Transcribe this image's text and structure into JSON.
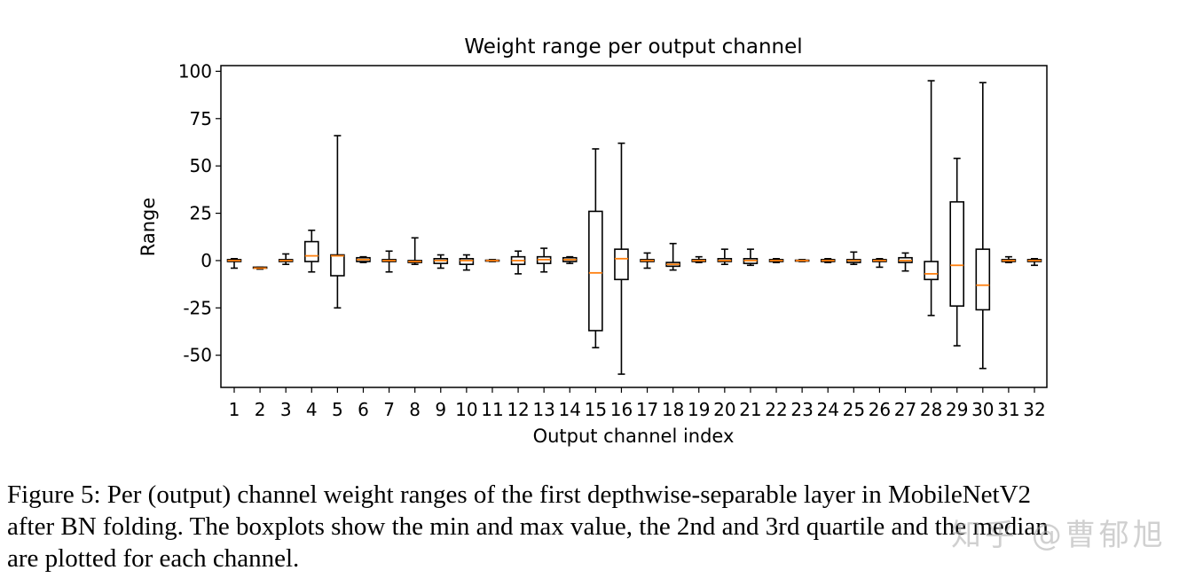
{
  "chart_data": {
    "type": "boxplot",
    "title": "Weight range per output channel",
    "xlabel": "Output channel index",
    "ylabel": "Range",
    "ylim": [
      -67,
      103
    ],
    "yticks": [
      100,
      75,
      50,
      25,
      0,
      -25,
      -50
    ],
    "categories": [
      "1",
      "2",
      "3",
      "4",
      "5",
      "6",
      "7",
      "8",
      "9",
      "10",
      "11",
      "12",
      "13",
      "14",
      "15",
      "16",
      "17",
      "18",
      "19",
      "20",
      "21",
      "22",
      "23",
      "24",
      "25",
      "26",
      "27",
      "28",
      "29",
      "30",
      "31",
      "32"
    ],
    "boxes": [
      {
        "min": -4,
        "q1": -0.5,
        "median": 0,
        "q3": 0.5,
        "max": 1
      },
      {
        "min": -4.5,
        "q1": -4,
        "median": -4,
        "q3": -3.5,
        "max": -3.5
      },
      {
        "min": -2,
        "q1": -0.5,
        "median": 0,
        "q3": 0.5,
        "max": 3.5
      },
      {
        "min": -6,
        "q1": -0.5,
        "median": 2.5,
        "q3": 10,
        "max": 16
      },
      {
        "min": -25,
        "q1": -8,
        "median": 2.5,
        "q3": 3,
        "max": 66
      },
      {
        "min": -1,
        "q1": -0.5,
        "median": 0.5,
        "q3": 1.5,
        "max": 2
      },
      {
        "min": -6,
        "q1": -0.5,
        "median": 0,
        "q3": 0.5,
        "max": 5
      },
      {
        "min": -2,
        "q1": -1,
        "median": -0.5,
        "q3": 0,
        "max": 12
      },
      {
        "min": -4,
        "q1": -1.5,
        "median": 0,
        "q3": 1,
        "max": 3
      },
      {
        "min": -5,
        "q1": -2,
        "median": 0,
        "q3": 1,
        "max": 3
      },
      {
        "min": -0.5,
        "q1": -0.2,
        "median": 0,
        "q3": 0.2,
        "max": 0.5
      },
      {
        "min": -7,
        "q1": -2,
        "median": 0,
        "q3": 2,
        "max": 5
      },
      {
        "min": -6,
        "q1": -1.5,
        "median": 0.5,
        "q3": 2,
        "max": 6.5
      },
      {
        "min": -1.5,
        "q1": -0.5,
        "median": 0.5,
        "q3": 1.5,
        "max": 2
      },
      {
        "min": -46,
        "q1": -37,
        "median": -6.5,
        "q3": 26,
        "max": 59
      },
      {
        "min": -60,
        "q1": -10,
        "median": 1,
        "q3": 6,
        "max": 62
      },
      {
        "min": -4,
        "q1": -0.5,
        "median": 0,
        "q3": 0.5,
        "max": 4
      },
      {
        "min": -5,
        "q1": -3,
        "median": -2,
        "q3": -1,
        "max": 9
      },
      {
        "min": -1,
        "q1": -0.5,
        "median": 0,
        "q3": 0.5,
        "max": 2
      },
      {
        "min": -2,
        "q1": -0.5,
        "median": 0,
        "q3": 1,
        "max": 6
      },
      {
        "min": -2.5,
        "q1": -1.5,
        "median": 0,
        "q3": 1,
        "max": 6
      },
      {
        "min": -1,
        "q1": -0.5,
        "median": 0,
        "q3": 0.5,
        "max": 1
      },
      {
        "min": -0.5,
        "q1": -0.2,
        "median": 0,
        "q3": 0.2,
        "max": 0.5
      },
      {
        "min": -1,
        "q1": -0.5,
        "median": 0,
        "q3": 0.5,
        "max": 1
      },
      {
        "min": -2,
        "q1": -1,
        "median": 0,
        "q3": 0.5,
        "max": 4.5
      },
      {
        "min": -3.5,
        "q1": -0.5,
        "median": 0,
        "q3": 0.5,
        "max": 1
      },
      {
        "min": -5.5,
        "q1": -1,
        "median": 0,
        "q3": 1.5,
        "max": 4
      },
      {
        "min": -29,
        "q1": -10,
        "median": -7,
        "q3": -0.5,
        "max": 95
      },
      {
        "min": -45,
        "q1": -24,
        "median": -2.5,
        "q3": 31,
        "max": 54
      },
      {
        "min": -57,
        "q1": -26,
        "median": -13,
        "q3": 6,
        "max": 94
      },
      {
        "min": -1,
        "q1": -0.5,
        "median": 0,
        "q3": 0.5,
        "max": 2
      },
      {
        "min": -2.5,
        "q1": -0.5,
        "median": 0,
        "q3": 0.5,
        "max": 1
      }
    ],
    "colors": {
      "box": "#000000",
      "median": "#ff7f0e"
    }
  },
  "caption": {
    "line1": "Figure 5: Per (output) channel weight ranges of the first depthwise-separable layer in MobileNetV2",
    "line2": "after BN folding. The boxplots show the min and max value, the 2nd and 3rd quartile and the median",
    "line3": "are plotted for each channel."
  },
  "watermark": "知乎 @曹郁旭"
}
